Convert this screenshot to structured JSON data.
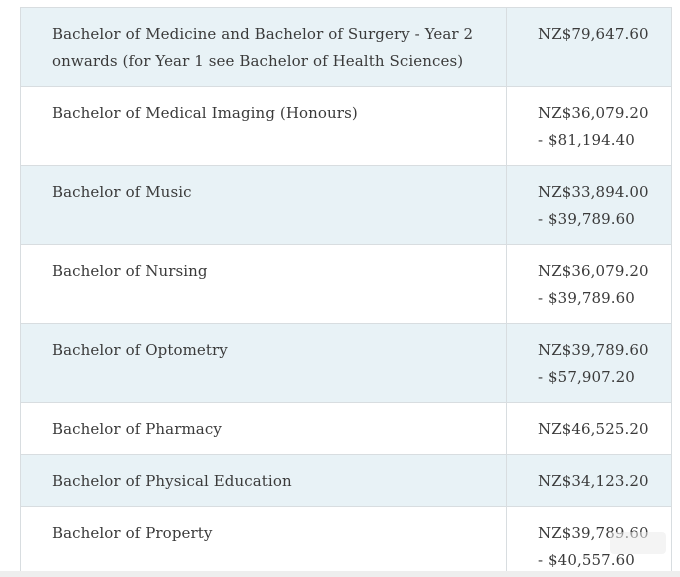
{
  "table": {
    "rows": [
      {
        "programme": "Bachelor of Medicine and Bachelor of Surgery - Year 2 onwards (for Year 1 see Bachelor of Health Sciences)",
        "fee": [
          "NZ$79,647.60"
        ],
        "shaded": true
      },
      {
        "programme": "Bachelor of Medical Imaging (Honours)",
        "fee": [
          "NZ$36,079.20",
          "- $81,194.40"
        ],
        "shaded": false
      },
      {
        "programme": "Bachelor of Music",
        "fee": [
          "NZ$33,894.00",
          "- $39,789.60"
        ],
        "shaded": true
      },
      {
        "programme": "Bachelor of Nursing",
        "fee": [
          "NZ$36,079.20",
          "- $39,789.60"
        ],
        "shaded": false
      },
      {
        "programme": "Bachelor of Optometry",
        "fee": [
          "NZ$39,789.60",
          "- $57,907.20"
        ],
        "shaded": true
      },
      {
        "programme": "Bachelor of Pharmacy",
        "fee": [
          "NZ$46,525.20"
        ],
        "shaded": false
      },
      {
        "programme": "Bachelor of Physical Education",
        "fee": [
          "NZ$34,123.20"
        ],
        "shaded": true
      },
      {
        "programme": "Bachelor of Property",
        "fee": [
          "NZ$39,789.60",
          "- $40,557.60"
        ],
        "shaded": false
      }
    ]
  },
  "colors": {
    "shaded_row": "#e8f2f6",
    "border": "#d8dde0",
    "text": "#3a3a3a"
  }
}
